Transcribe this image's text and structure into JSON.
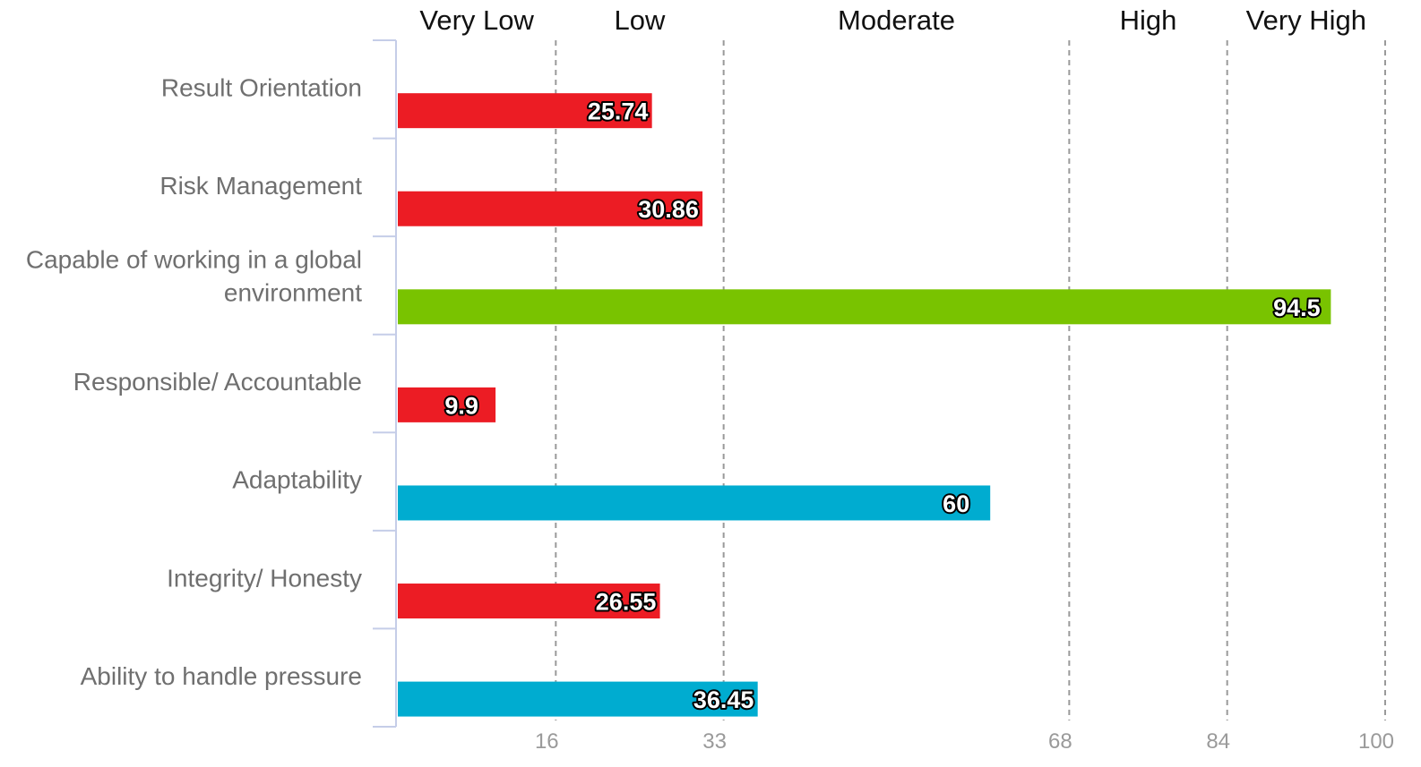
{
  "chart_data": {
    "type": "bar",
    "orientation": "horizontal",
    "title": "",
    "xlabel": "",
    "ylabel": "",
    "xlim": [
      0,
      100
    ],
    "x_ticks": [
      16,
      33,
      68,
      84,
      100
    ],
    "grid": "dashed vertical lines at tick values",
    "bands": [
      {
        "label": "Very Low",
        "from": 0,
        "to": 16
      },
      {
        "label": "Low",
        "from": 16,
        "to": 33
      },
      {
        "label": "Moderate",
        "from": 33,
        "to": 68
      },
      {
        "label": "High",
        "from": 68,
        "to": 84
      },
      {
        "label": "Very High",
        "from": 84,
        "to": 100
      }
    ],
    "categories": [
      {
        "label": [
          "Result Orientation"
        ],
        "value": 25.74,
        "display": "25.74",
        "color": "#ec1c24"
      },
      {
        "label": [
          "Risk Management"
        ],
        "value": 30.86,
        "display": "30.86",
        "color": "#ec1c24"
      },
      {
        "label": [
          "Capable of working in a global",
          "environment"
        ],
        "value": 94.5,
        "display": "94.5",
        "color": "#79c300"
      },
      {
        "label": [
          "Responsible/ Accountable"
        ],
        "value": 9.9,
        "display": "9.9",
        "color": "#ec1c24"
      },
      {
        "label": [
          "Adaptability"
        ],
        "value": 60,
        "display": "60",
        "color": "#00acd0"
      },
      {
        "label": [
          "Integrity/ Honesty"
        ],
        "value": 26.55,
        "display": "26.55",
        "color": "#ec1c24"
      },
      {
        "label": [
          "Ability to handle pressure"
        ],
        "value": 36.45,
        "display": "36.45",
        "color": "#00acd0"
      }
    ],
    "colors": {
      "axis": "#c5cde8",
      "gridline": "#9a9a9a"
    }
  }
}
